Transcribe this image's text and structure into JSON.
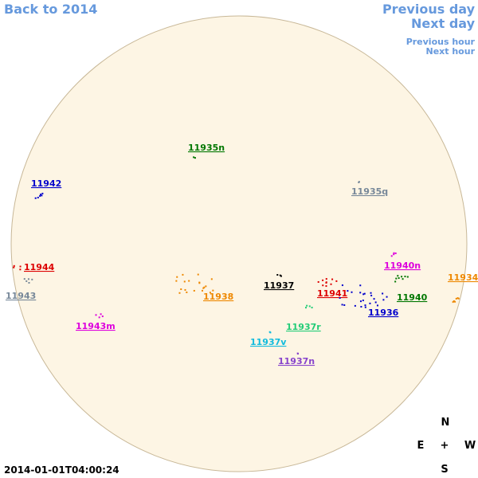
{
  "nav": {
    "back": "Back to 2014",
    "previous_day": "Previous day",
    "next_day": "Next day",
    "previous_hour": "Previous hour",
    "next_hour": "Next hour"
  },
  "regions": [
    {
      "label": "11935n",
      "color": "#007700"
    },
    {
      "label": "11942",
      "color": "#0000cc"
    },
    {
      "label": "11935q",
      "color": "#778899"
    },
    {
      "label": "11944",
      "color": "#dd0000"
    },
    {
      "label": "11940n",
      "color": "#dd00dd"
    },
    {
      "label": "11934",
      "color": "#ee8800"
    },
    {
      "label": "11937",
      "color": "#000000"
    },
    {
      "label": "11941",
      "color": "#dd0000"
    },
    {
      "label": "11938",
      "color": "#ee8800"
    },
    {
      "label": "11943",
      "color": "#778899"
    },
    {
      "label": "11940",
      "color": "#007700"
    },
    {
      "label": "11936",
      "color": "#0000cc"
    },
    {
      "label": "11943m",
      "color": "#dd00dd"
    },
    {
      "label": "11937r",
      "color": "#22cc77"
    },
    {
      "label": "11937v",
      "color": "#11bbdd"
    },
    {
      "label": "11937n",
      "color": "#8844cc"
    }
  ],
  "compass": {
    "north": "N",
    "east": "E",
    "center": "+",
    "west": "W",
    "south": "S"
  },
  "timestamp": "2014-01-01T04:00:24"
}
